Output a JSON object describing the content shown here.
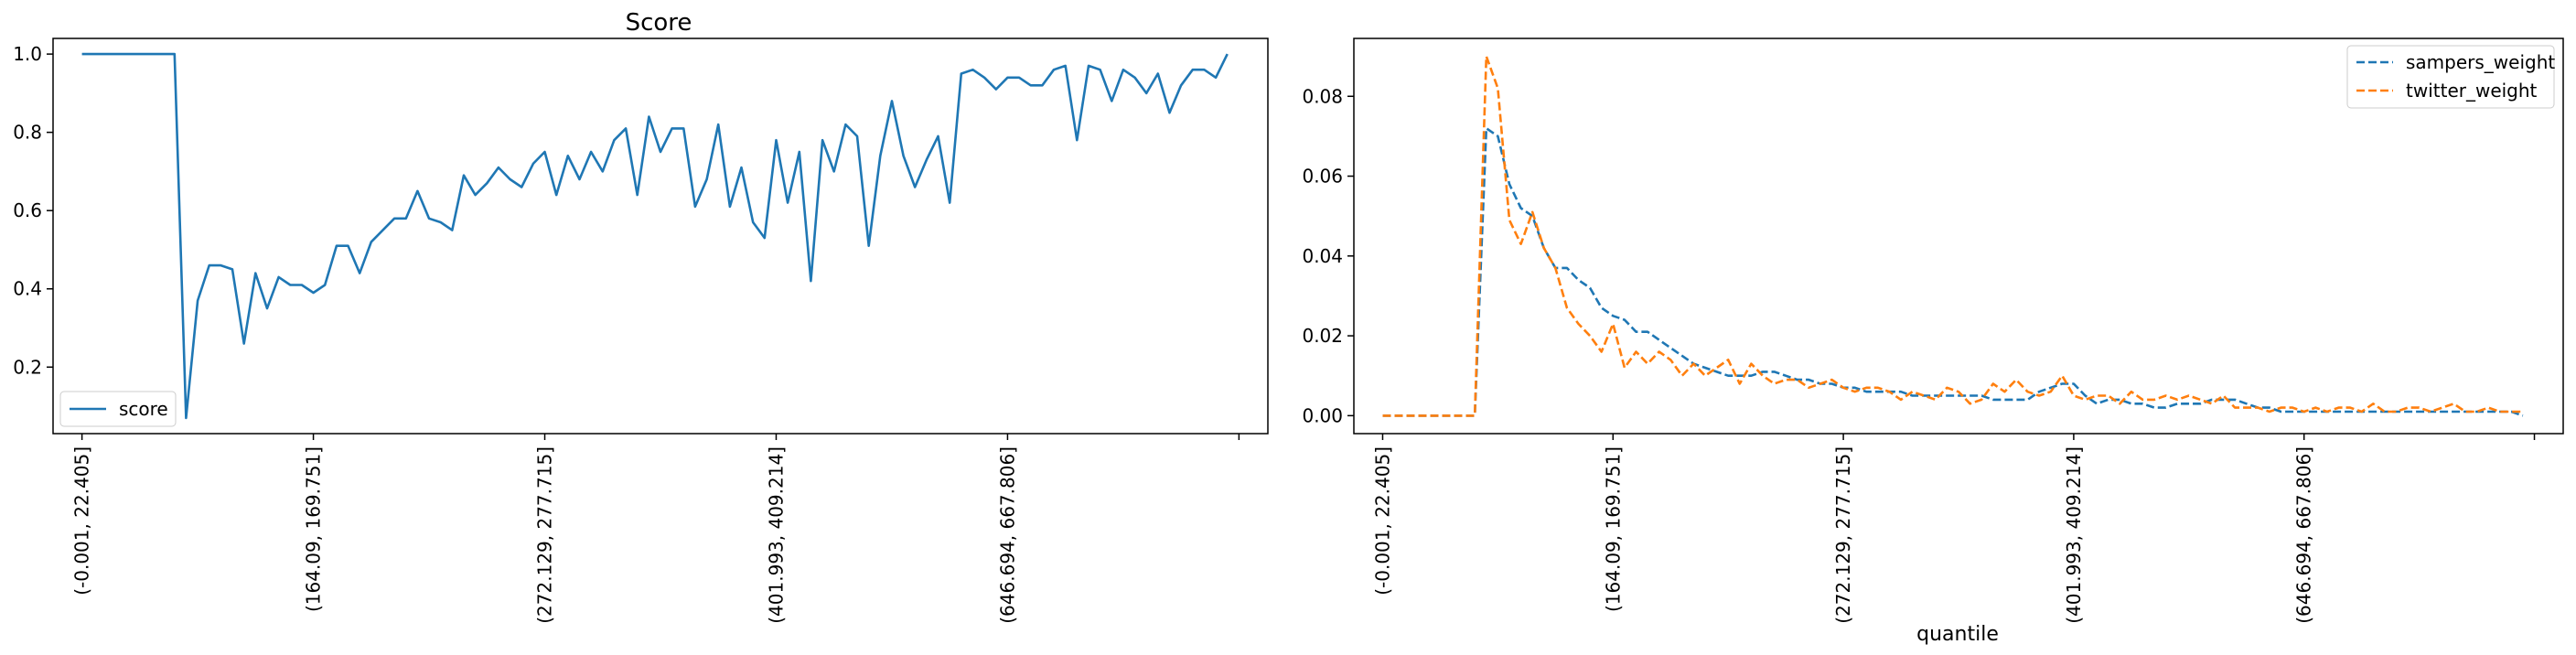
{
  "colors": {
    "blue": "#1f77b4",
    "orange": "#ff7f0e"
  },
  "chart_data": [
    {
      "type": "line",
      "title": "Score",
      "xlabel": "",
      "ylabel": "",
      "xlim": [
        -2.5,
        102.5
      ],
      "ylim": [
        0.03,
        1.04
      ],
      "yticks": [
        0.2,
        0.4,
        0.6,
        0.8,
        1.0
      ],
      "ytick_labels": [
        "0.2",
        "0.4",
        "0.6",
        "0.8",
        "1.0"
      ],
      "xticks": [
        0,
        20,
        40,
        60,
        80,
        100
      ],
      "xtick_labels": [
        "(-0.001, 22.405]",
        "(164.09, 169.751]",
        "(272.129, 277.715]",
        "(401.993, 409.214]",
        "(646.694, 667.806]",
        ""
      ],
      "legend": {
        "position": "lower left",
        "style": "solid",
        "entries": [
          "score"
        ]
      },
      "grid": false,
      "series": [
        {
          "name": "score",
          "color": "#1f77b4",
          "values": [
            1.0,
            1.0,
            1.0,
            1.0,
            1.0,
            1.0,
            1.0,
            1.0,
            1.0,
            0.07,
            0.37,
            0.46,
            0.46,
            0.45,
            0.26,
            0.44,
            0.35,
            0.43,
            0.41,
            0.41,
            0.39,
            0.41,
            0.51,
            0.51,
            0.44,
            0.52,
            0.55,
            0.58,
            0.58,
            0.65,
            0.58,
            0.57,
            0.55,
            0.69,
            0.64,
            0.67,
            0.71,
            0.68,
            0.66,
            0.72,
            0.75,
            0.64,
            0.74,
            0.68,
            0.75,
            0.7,
            0.78,
            0.81,
            0.64,
            0.84,
            0.75,
            0.81,
            0.81,
            0.61,
            0.68,
            0.82,
            0.61,
            0.71,
            0.57,
            0.53,
            0.78,
            0.62,
            0.75,
            0.42,
            0.78,
            0.7,
            0.82,
            0.79,
            0.51,
            0.74,
            0.88,
            0.74,
            0.66,
            0.73,
            0.79,
            0.62,
            0.95,
            0.96,
            0.94,
            0.91,
            0.94,
            0.94,
            0.92,
            0.92,
            0.96,
            0.97,
            0.78,
            0.97,
            0.96,
            0.88,
            0.96,
            0.94,
            0.9,
            0.95,
            0.85,
            0.92,
            0.96,
            0.96,
            0.94,
            1.0
          ]
        }
      ]
    },
    {
      "type": "line",
      "title": "",
      "xlabel": "quantile",
      "ylabel": "",
      "xlim": [
        -2.5,
        102.5
      ],
      "ylim": [
        -0.0045,
        0.0945
      ],
      "yticks": [
        0.0,
        0.02,
        0.04,
        0.06,
        0.08
      ],
      "ytick_labels": [
        "0.00",
        "0.02",
        "0.04",
        "0.06",
        "0.08"
      ],
      "xticks": [
        0,
        20,
        40,
        60,
        80,
        100
      ],
      "xtick_labels": [
        "(-0.001, 22.405]",
        "(164.09, 169.751]",
        "(272.129, 277.715]",
        "(401.993, 409.214]",
        "(646.694, 667.806]",
        ""
      ],
      "legend": {
        "position": "upper right",
        "style": "dashed",
        "entries": [
          "sampers_weight",
          "twitter_weight"
        ]
      },
      "grid": false,
      "series": [
        {
          "name": "sampers_weight",
          "color": "#1f77b4",
          "values": [
            0.0,
            0.0,
            0.0,
            0.0,
            0.0,
            0.0,
            0.0,
            0.0,
            0.0,
            0.072,
            0.07,
            0.058,
            0.052,
            0.05,
            0.042,
            0.037,
            0.037,
            0.034,
            0.032,
            0.027,
            0.025,
            0.024,
            0.021,
            0.021,
            0.019,
            0.017,
            0.015,
            0.013,
            0.012,
            0.011,
            0.01,
            0.01,
            0.01,
            0.011,
            0.011,
            0.01,
            0.009,
            0.009,
            0.008,
            0.008,
            0.007,
            0.007,
            0.006,
            0.006,
            0.006,
            0.006,
            0.005,
            0.005,
            0.005,
            0.005,
            0.005,
            0.005,
            0.005,
            0.004,
            0.004,
            0.004,
            0.004,
            0.006,
            0.007,
            0.008,
            0.008,
            0.005,
            0.003,
            0.004,
            0.004,
            0.003,
            0.003,
            0.002,
            0.002,
            0.003,
            0.003,
            0.003,
            0.004,
            0.004,
            0.004,
            0.003,
            0.002,
            0.002,
            0.001,
            0.001,
            0.001,
            0.001,
            0.001,
            0.001,
            0.001,
            0.001,
            0.001,
            0.001,
            0.001,
            0.001,
            0.001,
            0.001,
            0.001,
            0.001,
            0.001,
            0.001,
            0.001,
            0.001,
            0.001,
            0.0
          ]
        },
        {
          "name": "twitter_weight",
          "color": "#ff7f0e",
          "values": [
            0.0,
            0.0,
            0.0,
            0.0,
            0.0,
            0.0,
            0.0,
            0.0,
            0.0,
            0.09,
            0.082,
            0.049,
            0.043,
            0.051,
            0.042,
            0.037,
            0.027,
            0.023,
            0.02,
            0.016,
            0.023,
            0.012,
            0.016,
            0.013,
            0.016,
            0.014,
            0.01,
            0.013,
            0.01,
            0.012,
            0.014,
            0.008,
            0.013,
            0.01,
            0.008,
            0.009,
            0.009,
            0.007,
            0.008,
            0.009,
            0.007,
            0.006,
            0.007,
            0.007,
            0.006,
            0.004,
            0.006,
            0.005,
            0.004,
            0.007,
            0.006,
            0.003,
            0.004,
            0.008,
            0.006,
            0.009,
            0.006,
            0.005,
            0.006,
            0.01,
            0.005,
            0.004,
            0.005,
            0.005,
            0.003,
            0.006,
            0.004,
            0.004,
            0.005,
            0.004,
            0.005,
            0.004,
            0.003,
            0.005,
            0.002,
            0.002,
            0.002,
            0.001,
            0.002,
            0.002,
            0.001,
            0.002,
            0.001,
            0.002,
            0.002,
            0.001,
            0.003,
            0.001,
            0.001,
            0.002,
            0.002,
            0.001,
            0.002,
            0.003,
            0.001,
            0.001,
            0.002,
            0.001,
            0.001,
            0.001
          ]
        }
      ]
    }
  ]
}
